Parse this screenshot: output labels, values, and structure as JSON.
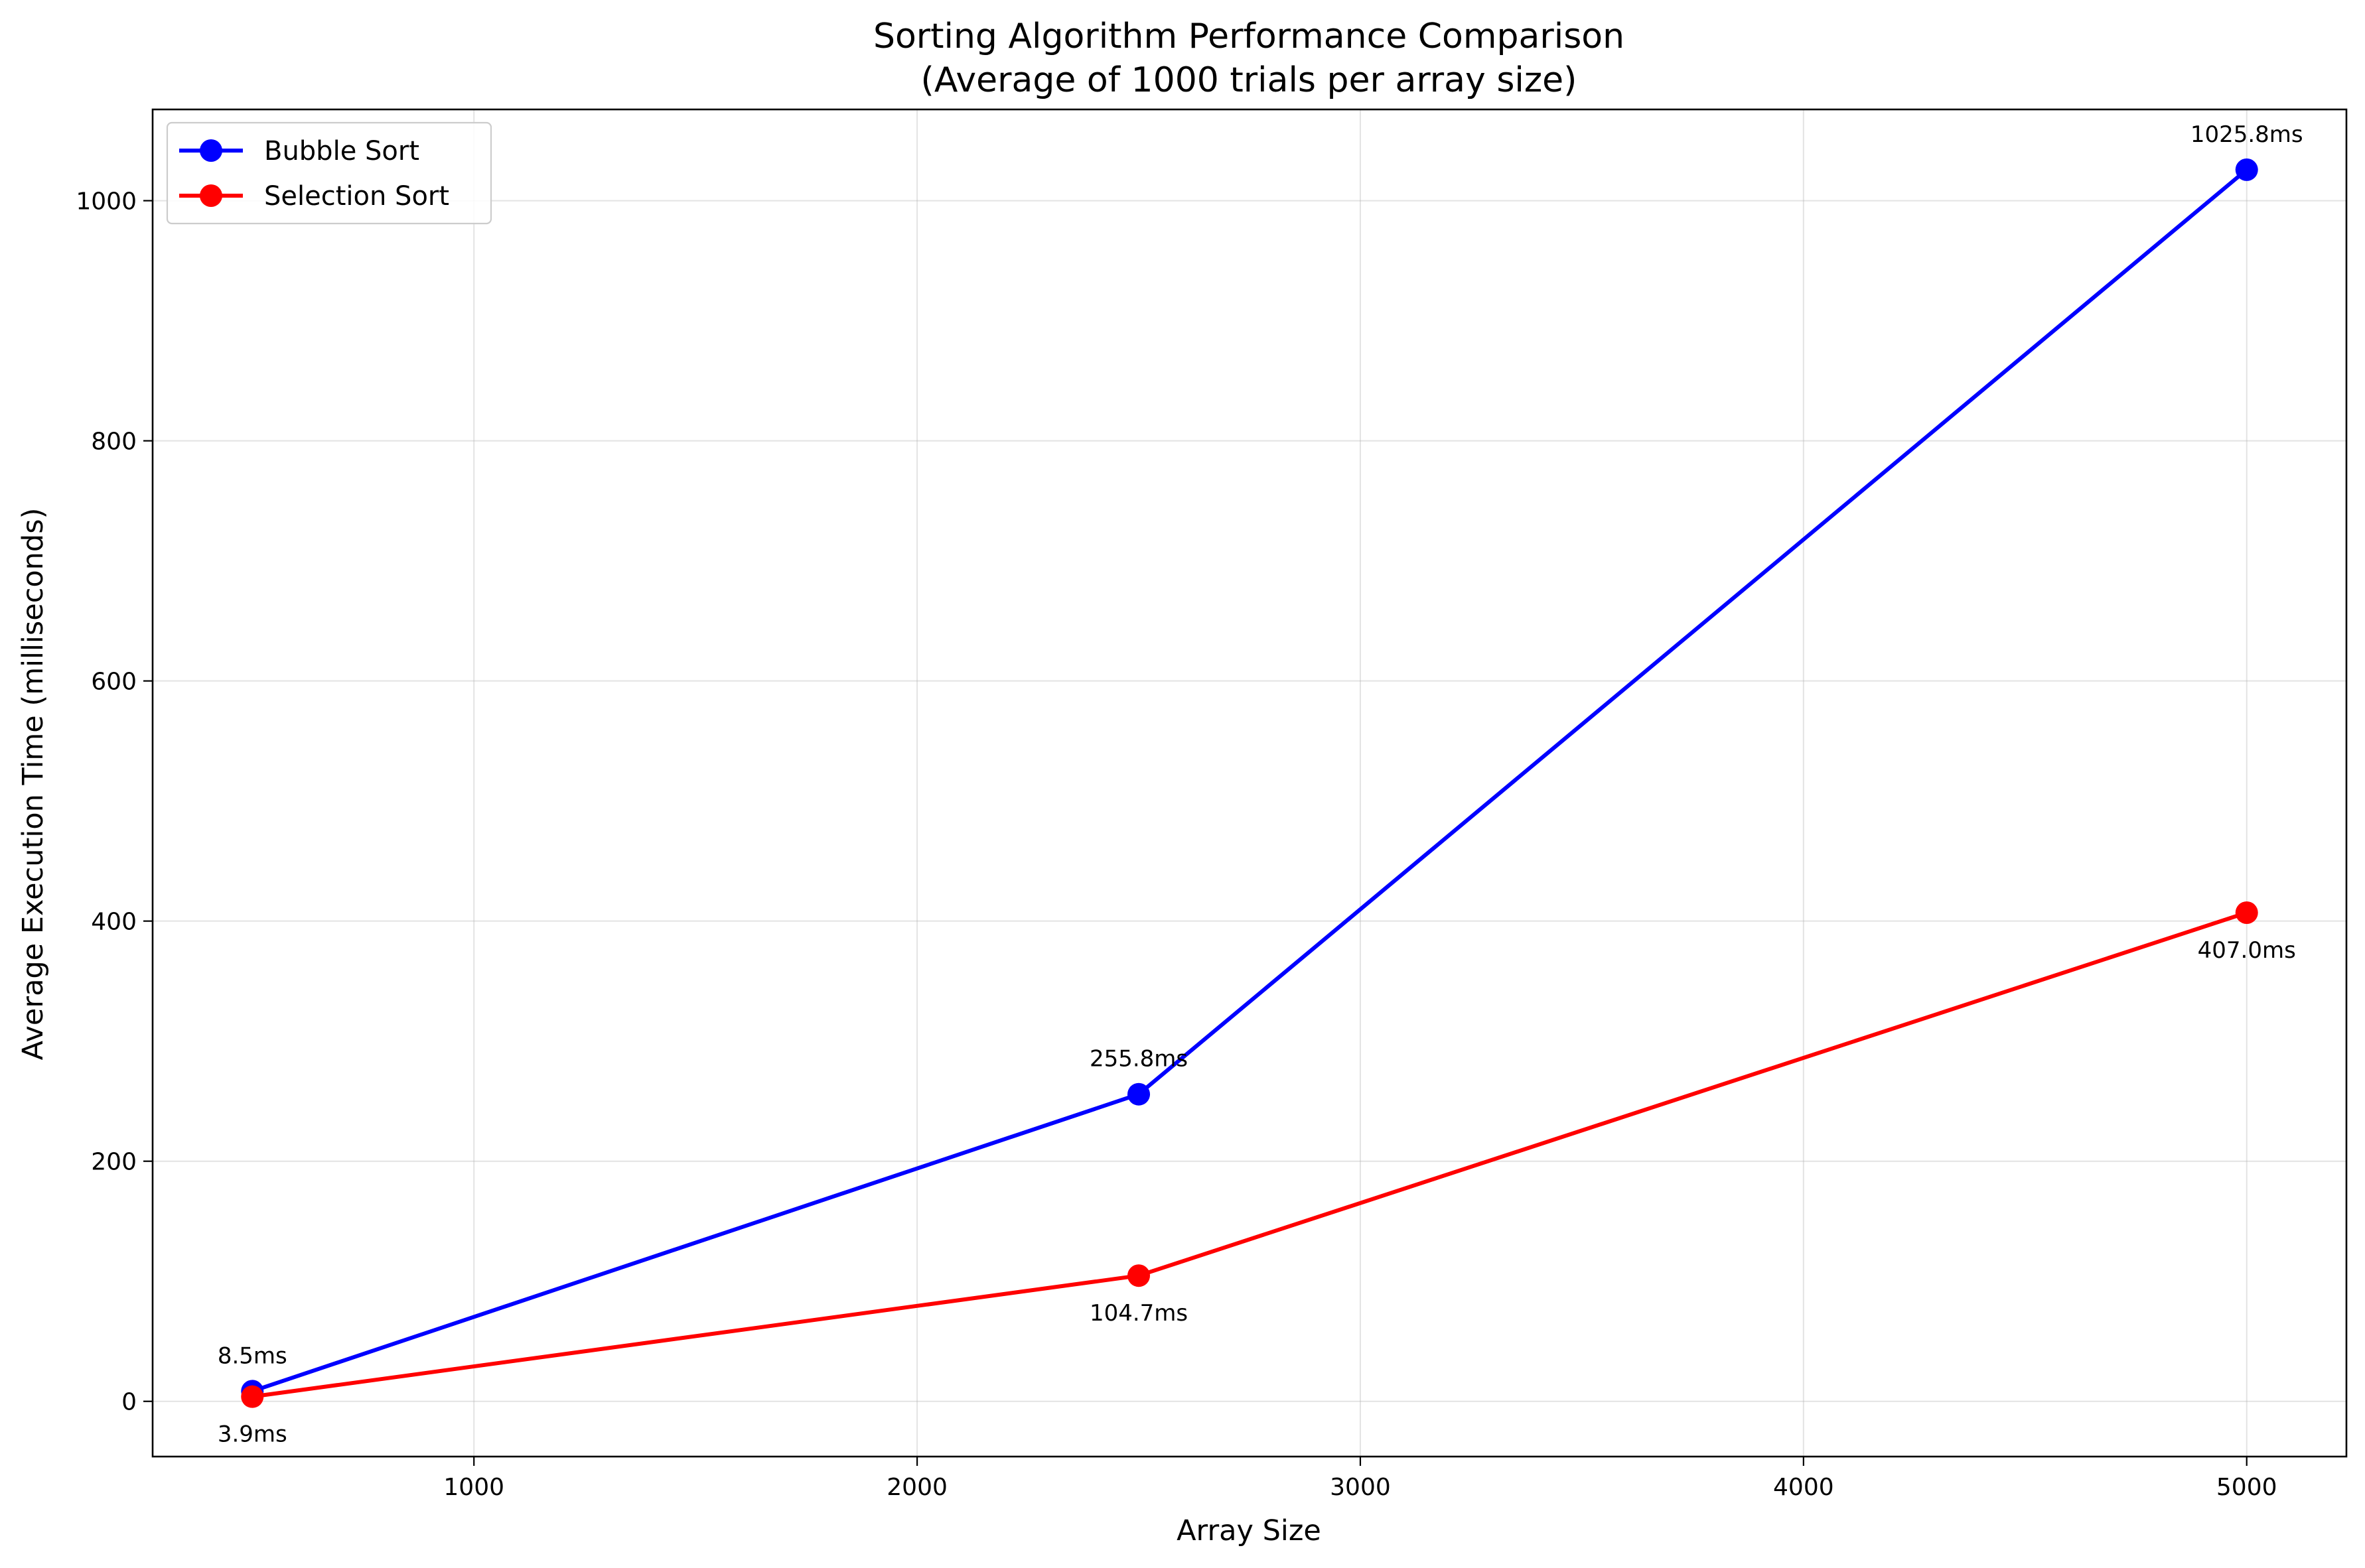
{
  "chart_data": {
    "type": "line",
    "title": "Sorting Algorithm Performance Comparison",
    "subtitle": "(Average of 1000 trials per array size)",
    "xlabel": "Array Size",
    "ylabel": "Average Execution Time (milliseconds)",
    "xlim": [
      275,
      5225
    ],
    "ylim": [
      -46,
      1076
    ],
    "xticks": [
      1000,
      2000,
      3000,
      4000,
      5000
    ],
    "yticks": [
      0,
      200,
      400,
      600,
      800,
      1000
    ],
    "grid": true,
    "legend_position": "top-left",
    "x": [
      500,
      2500,
      5000
    ],
    "series": [
      {
        "name": "Bubble Sort",
        "color": "#0000ff",
        "values": [
          8.5,
          255.8,
          1025.8
        ],
        "labels": [
          "8.5ms",
          "255.8ms",
          "1025.8ms"
        ],
        "label_position": "above"
      },
      {
        "name": "Selection Sort",
        "color": "#ff0000",
        "values": [
          3.9,
          104.7,
          407.0
        ],
        "labels": [
          "3.9ms",
          "104.7ms",
          "407.0ms"
        ],
        "label_position": "below"
      }
    ]
  }
}
